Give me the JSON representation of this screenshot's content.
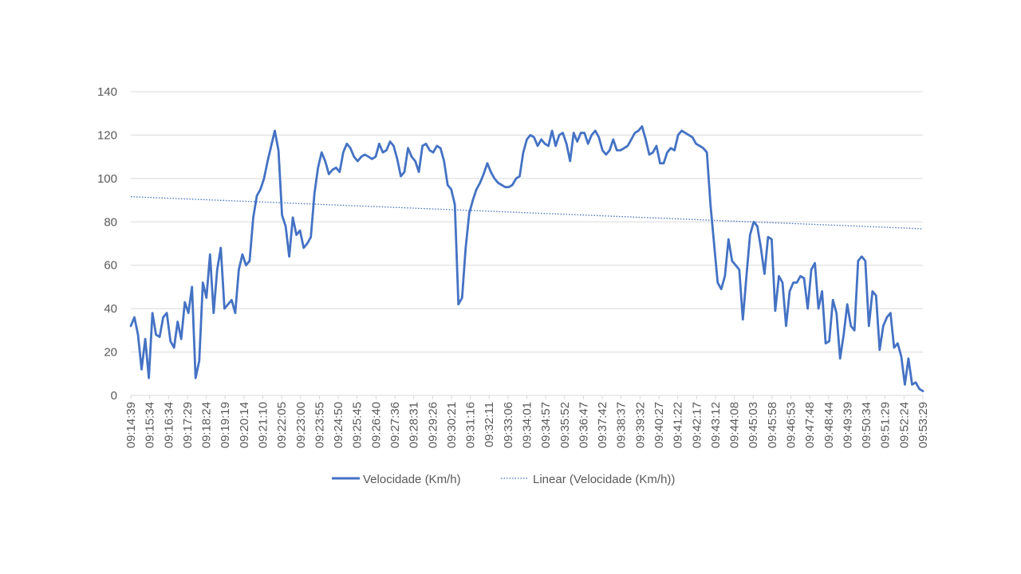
{
  "chart_data": {
    "type": "line",
    "title": "",
    "xlabel": "",
    "ylabel": "",
    "ylim": [
      0,
      140
    ],
    "yticks": [
      0,
      20,
      40,
      60,
      80,
      100,
      120,
      140
    ],
    "grid": "horizontal",
    "legend_position": "bottom",
    "x_tick_labels": [
      "09:14:39",
      "09:15:34",
      "09:16:34",
      "09:17:29",
      "09:18:24",
      "09:19:19",
      "09:20:14",
      "09:21:10",
      "09:22:05",
      "09:23:00",
      "09:23:55",
      "09:24:50",
      "09:25:45",
      "09:26:40",
      "09:27:36",
      "09:28:31",
      "09:29:26",
      "09:30:21",
      "09:31:16",
      "09:32:11",
      "09:33:06",
      "09:34:01",
      "09:34:57",
      "09:35:52",
      "09:36:47",
      "09:37:42",
      "09:38:37",
      "09:39:32",
      "09:40:27",
      "09:41:22",
      "09:42:17",
      "09:43:12",
      "09:44:08",
      "09:45:03",
      "09:45:58",
      "09:46:53",
      "09:47:48",
      "09:48:44",
      "09:49:39",
      "09:50:34",
      "09:51:29",
      "09:52:24",
      "09:53:29"
    ],
    "series": [
      {
        "name": "Velocidade (Km/h)",
        "style": "solid",
        "color": "#4472C4",
        "x_range": [
          0,
          1
        ],
        "values": [
          32,
          36,
          28,
          12,
          26,
          8,
          38,
          28,
          27,
          36,
          38,
          25,
          22,
          34,
          26,
          43,
          38,
          50,
          8,
          16,
          52,
          45,
          65,
          38,
          58,
          68,
          40,
          42,
          44,
          38,
          58,
          65,
          60,
          62,
          82,
          92,
          95,
          100,
          108,
          115,
          122,
          113,
          83,
          78,
          64,
          82,
          74,
          76,
          68,
          70,
          73,
          93,
          105,
          112,
          108,
          102,
          104,
          105,
          103,
          112,
          116,
          114,
          110,
          108,
          110,
          111,
          110,
          109,
          110,
          116,
          112,
          113,
          117,
          115,
          109,
          101,
          103,
          114,
          110,
          108,
          103,
          115,
          116,
          113,
          112,
          115,
          114,
          108,
          97,
          95,
          88,
          42,
          45,
          68,
          84,
          90,
          95,
          98,
          102,
          107,
          103,
          100,
          98,
          97,
          96,
          96,
          97,
          100,
          101,
          112,
          118,
          120,
          119,
          115,
          118,
          116,
          115,
          122,
          115,
          120,
          121,
          116,
          108,
          121,
          117,
          121,
          121,
          116,
          120,
          122,
          119,
          113,
          111,
          113,
          118,
          113,
          113,
          114,
          115,
          118,
          121,
          122,
          124,
          118,
          111,
          112,
          115,
          107,
          107,
          112,
          114,
          113,
          120,
          122,
          121,
          120,
          119,
          116,
          115,
          114,
          112,
          88,
          70,
          52,
          49,
          55,
          72,
          62,
          60,
          58,
          35,
          55,
          74,
          80,
          78,
          68,
          56,
          73,
          72,
          39,
          55,
          52,
          32,
          48,
          52,
          52,
          55,
          54,
          40,
          58,
          61,
          40,
          48,
          24,
          25,
          44,
          38,
          17,
          28,
          42,
          32,
          30,
          62,
          64,
          62,
          32,
          48,
          46,
          21,
          32,
          36,
          38,
          22,
          24,
          18,
          5,
          17,
          5,
          6,
          3,
          2
        ]
      },
      {
        "name": "Linear (Velocidade (Km/h))",
        "style": "dotted",
        "color": "#4472C4",
        "x_range": [
          0,
          1
        ],
        "values": [
          91.6,
          76.8
        ]
      }
    ]
  }
}
